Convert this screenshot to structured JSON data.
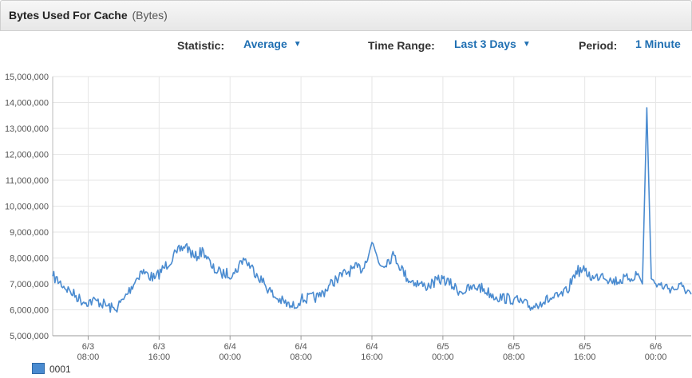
{
  "header": {
    "title": "Bytes Used For Cache",
    "unit": "(Bytes)"
  },
  "controls": {
    "statistic_label": "Statistic:",
    "statistic_value": "Average",
    "time_range_label": "Time Range:",
    "time_range_value": "Last 3 Days",
    "period_label": "Period:",
    "period_value": "1 Minute"
  },
  "legend": {
    "label": "0001"
  },
  "colors": {
    "series": "#4a8bd0",
    "accent": "#1f6fb2"
  },
  "chart_data": {
    "type": "line",
    "ylim": [
      5000000,
      15000000
    ],
    "yticks": [
      "5,000,000",
      "6,000,000",
      "7,000,000",
      "8,000,000",
      "9,000,000",
      "10,000,000",
      "11,000,000",
      "12,000,000",
      "13,000,000",
      "14,000,000",
      "15,000,000"
    ],
    "xlim": [
      "6/3 04:00",
      "6/6 04:00"
    ],
    "xticks": [
      {
        "date": "6/3",
        "time": "08:00"
      },
      {
        "date": "6/3",
        "time": "16:00"
      },
      {
        "date": "6/4",
        "time": "00:00"
      },
      {
        "date": "6/4",
        "time": "08:00"
      },
      {
        "date": "6/4",
        "time": "16:00"
      },
      {
        "date": "6/5",
        "time": "00:00"
      },
      {
        "date": "6/5",
        "time": "08:00"
      },
      {
        "date": "6/5",
        "time": "16:00"
      },
      {
        "date": "6/6",
        "time": "00:00"
      }
    ],
    "grid": true,
    "legend_position": "bottom-left",
    "series": [
      {
        "name": "0001",
        "x": [
          "6/3 04:00",
          "6/3 06:00",
          "6/3 07:30",
          "6/3 09:00",
          "6/3 11:00",
          "6/3 12:00",
          "6/3 14:00",
          "6/3 15:30",
          "6/3 18:00",
          "6/3 19:00",
          "6/3 20:00",
          "6/3 21:00",
          "6/3 22:00",
          "6/3 23:00",
          "6/4 00:30",
          "6/4 01:30",
          "6/4 03:00",
          "6/4 05:00",
          "6/4 07:00",
          "6/4 08:00",
          "6/4 10:00",
          "6/4 12:00",
          "6/4 14:00",
          "6/4 15:00",
          "6/4 16:00",
          "6/4 17:00",
          "6/4 18:30",
          "6/4 20:00",
          "6/4 22:00",
          "6/5 00:00",
          "6/5 02:00",
          "6/5 04:00",
          "6/5 06:00",
          "6/5 08:00",
          "6/5 10:00",
          "6/5 11:00",
          "6/5 13:00",
          "6/5 14:00",
          "6/5 15:00",
          "6/5 16:00",
          "6/5 17:00",
          "6/5 18:00",
          "6/5 19:00",
          "6/5 21:00",
          "6/5 22:00",
          "6/5 22:30",
          "6/5 23:00",
          "6/5 23:30",
          "6/6 00:00",
          "6/6 01:00",
          "6/6 02:00",
          "6/6 03:00",
          "6/6 04:00"
        ],
        "values": [
          7300000,
          6700000,
          6300000,
          6350000,
          6000000,
          6400000,
          7500000,
          7200000,
          8200000,
          8500000,
          8000000,
          8300000,
          7600000,
          7400000,
          7400000,
          8000000,
          7400000,
          6500000,
          6100000,
          6400000,
          6500000,
          7200000,
          7600000,
          7600000,
          8600000,
          7700000,
          8100000,
          7200000,
          6900000,
          7200000,
          6700000,
          6900000,
          6500000,
          6400000,
          6100000,
          6300000,
          6500000,
          6700000,
          7500000,
          7500000,
          7200000,
          7400000,
          7100000,
          7200000,
          7400000,
          7000000,
          13800000,
          7200000,
          7000000,
          6900000,
          6800000,
          6900000,
          6600000
        ]
      }
    ]
  }
}
